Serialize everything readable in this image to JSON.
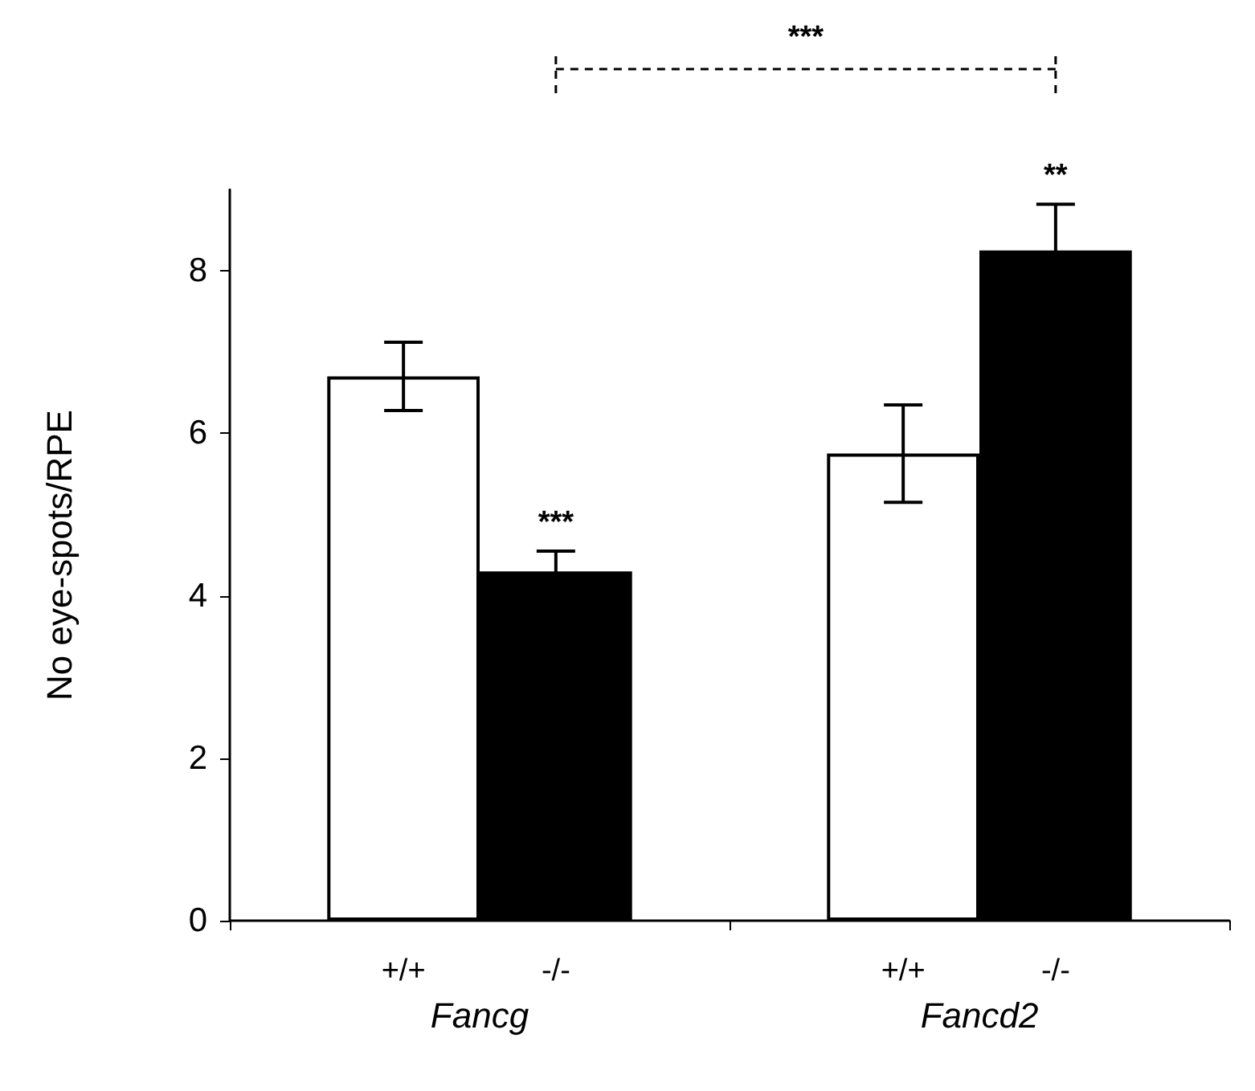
{
  "chart_data": {
    "type": "bar",
    "ylabel": "No eye-spots/RPE",
    "categories": [
      "Fancg",
      "Fancd2"
    ],
    "series": [
      {
        "name": "+/+",
        "color": "#ffffff",
        "values": [
          6.7,
          5.75
        ],
        "errors": [
          0.42,
          0.6
        ]
      },
      {
        "name": "-/-",
        "color": "#000000",
        "values": [
          4.3,
          8.25
        ],
        "errors": [
          0.25,
          0.57
        ]
      }
    ],
    "ylim": [
      0,
      9
    ],
    "yticks": [
      0,
      2,
      4,
      6,
      8
    ],
    "grid": false,
    "legend": false,
    "annotations": [
      "***",
      "**",
      "***"
    ]
  }
}
